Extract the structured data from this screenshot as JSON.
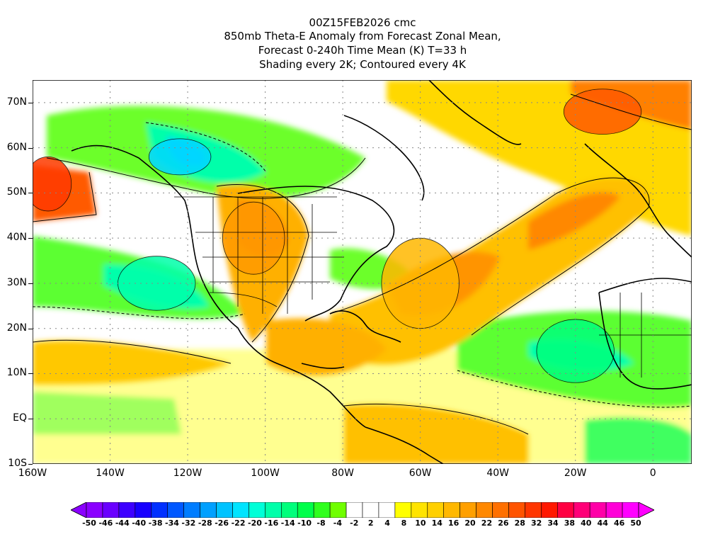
{
  "header": {
    "lines": [
      "00Z15FEB2026 cmc",
      "850mb Theta-E Anomaly from Forecast Zonal Mean,",
      "Forecast 0-240h Time Mean (K) T=33 h",
      "Shading every 2K; Contoured every 4K"
    ]
  },
  "axes": {
    "lat_labels": [
      "70N",
      "60N",
      "50N",
      "40N",
      "30N",
      "20N",
      "10N",
      "EQ",
      "10S"
    ],
    "lat_values": [
      70,
      60,
      50,
      40,
      30,
      20,
      10,
      0,
      -10
    ],
    "lon_labels": [
      "160W",
      "140W",
      "120W",
      "100W",
      "80W",
      "60W",
      "40W",
      "20W",
      "0"
    ],
    "lon_values": [
      -160,
      -140,
      -120,
      -100,
      -80,
      -60,
      -40,
      -20,
      0
    ],
    "lat_range": [
      -10,
      75
    ],
    "lon_range": [
      -160,
      10
    ],
    "grid": "dotted"
  },
  "colorbar": {
    "labels": [
      "-50",
      "-46",
      "-44",
      "-40",
      "-38",
      "-34",
      "-32",
      "-28",
      "-26",
      "-22",
      "-20",
      "-16",
      "-14",
      "-10",
      "-8",
      "-4",
      "-2",
      "2",
      "4",
      "8",
      "10",
      "14",
      "16",
      "20",
      "22",
      "26",
      "28",
      "32",
      "34",
      "38",
      "40",
      "44",
      "46",
      "50"
    ],
    "colors": [
      "#8a00ff",
      "#6a00ff",
      "#3d00ff",
      "#1800ff",
      "#0030ff",
      "#0058ff",
      "#007dff",
      "#00a0ff",
      "#00c3ff",
      "#00e4ff",
      "#00ffd8",
      "#00ffaa",
      "#00ff7c",
      "#00ff4a",
      "#30ff1e",
      "#70ff00",
      "#ffffff",
      "#ffffff",
      "#ffffff",
      "#ffff00",
      "#ffe400",
      "#ffd000",
      "#ffb800",
      "#ffa000",
      "#ff8800",
      "#ff7000",
      "#ff5400",
      "#ff3600",
      "#ff1800",
      "#ff0042",
      "#ff0078",
      "#ff00a8",
      "#ff00d8",
      "#ff00ff"
    ]
  },
  "regions": [
    {
      "name": "nw-atlantic-anomaly",
      "color": "#ff5a00",
      "lon": -13,
      "lat": 68,
      "rx": 10,
      "ry": 5
    },
    {
      "name": "gulf-alaska-anomaly",
      "color": "#ff3a00",
      "lon": -156,
      "lat": 52,
      "rx": 6,
      "ry": 6
    },
    {
      "name": "central-us-anomaly",
      "color": "#ff9a00",
      "lon": -103,
      "lat": 40,
      "rx": 8,
      "ry": 8
    },
    {
      "name": "atlantic-plume",
      "color": "#ffb800",
      "lon": -60,
      "lat": 30,
      "rx": 10,
      "ry": 10
    },
    {
      "name": "canada-cold",
      "color": "#00d8ff",
      "lon": -122,
      "lat": 58,
      "rx": 8,
      "ry": 4
    },
    {
      "name": "east-pacific-cold",
      "color": "#00ffaa",
      "lon": -128,
      "lat": 30,
      "rx": 10,
      "ry": 6
    },
    {
      "name": "sahara-cold",
      "color": "#00ff7c",
      "lon": -20,
      "lat": 15,
      "rx": 10,
      "ry": 7
    }
  ]
}
